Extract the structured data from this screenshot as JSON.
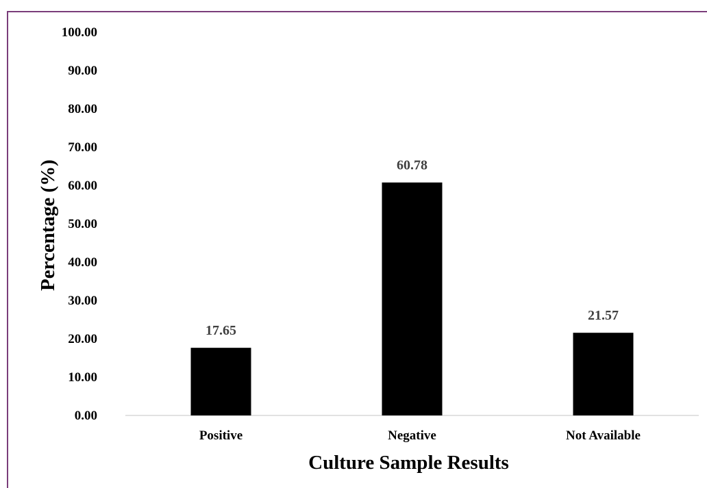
{
  "chart_data": {
    "type": "bar",
    "categories": [
      "Positive",
      "Negative",
      "Not Available"
    ],
    "values": [
      17.65,
      60.78,
      21.57
    ],
    "data_labels": [
      "17.65",
      "60.78",
      "21.57"
    ],
    "title": "",
    "xlabel": "Culture Sample Results",
    "ylabel": "Percentage (%)",
    "ylim": [
      0,
      100
    ],
    "yticks": [
      0,
      10,
      20,
      30,
      40,
      50,
      60,
      70,
      80,
      90,
      100
    ],
    "ytick_labels": [
      "0.00",
      "10.00",
      "20.00",
      "30.00",
      "40.00",
      "50.00",
      "60.00",
      "70.00",
      "80.00",
      "90.00",
      "100.00"
    ],
    "grid": false,
    "legend": "none",
    "bar_color": "#000000",
    "label_color": "#404040",
    "border_color": "#7a3d7a"
  }
}
